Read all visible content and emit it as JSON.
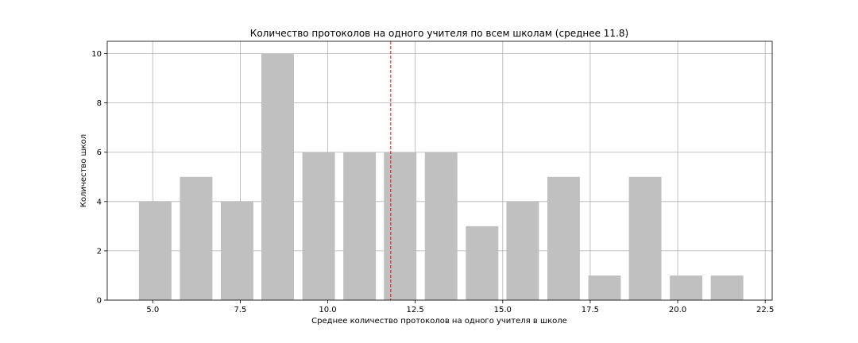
{
  "chart_data": {
    "type": "bar",
    "title": "Количество протоколов на одного учителя по всем школам (среднее 11.8)",
    "xlabel": "Среднее количество протоколов на одного учителя в школе",
    "ylabel": "Количество школ",
    "xlim": [
      3.7,
      22.7
    ],
    "ylim": [
      0,
      10.5
    ],
    "xticks": [
      5.0,
      7.5,
      10.0,
      12.5,
      15.0,
      17.5,
      20.0,
      22.5
    ],
    "xtick_labels": [
      "5.0",
      "7.5",
      "10.0",
      "12.5",
      "15.0",
      "17.5",
      "20.0",
      "22.5"
    ],
    "yticks": [
      0,
      2,
      4,
      6,
      8,
      10
    ],
    "ytick_labels": [
      "0",
      "2",
      "4",
      "6",
      "8",
      "10"
    ],
    "bar_color": "#c0c0c0",
    "bar_width": 0.93,
    "bars": [
      {
        "x": 5.07,
        "value": 4
      },
      {
        "x": 6.24,
        "value": 5
      },
      {
        "x": 7.41,
        "value": 4
      },
      {
        "x": 8.57,
        "value": 10
      },
      {
        "x": 9.74,
        "value": 6
      },
      {
        "x": 10.91,
        "value": 6
      },
      {
        "x": 12.07,
        "value": 6
      },
      {
        "x": 13.24,
        "value": 6
      },
      {
        "x": 14.41,
        "value": 3
      },
      {
        "x": 15.57,
        "value": 4
      },
      {
        "x": 16.74,
        "value": 5
      },
      {
        "x": 17.91,
        "value": 1
      },
      {
        "x": 19.07,
        "value": 5
      },
      {
        "x": 20.24,
        "value": 1
      },
      {
        "x": 21.41,
        "value": 1
      }
    ],
    "mean_line": {
      "x": 11.8,
      "color": "#ff0000",
      "style": "dashed"
    },
    "grid": true
  }
}
